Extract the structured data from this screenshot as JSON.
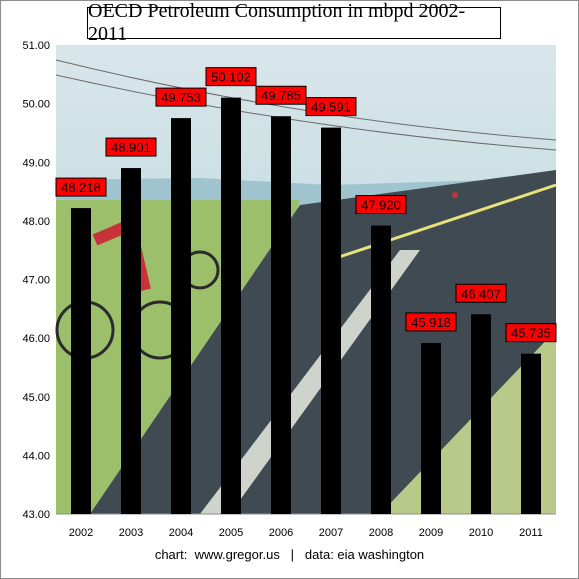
{
  "chart_data": {
    "type": "bar",
    "title": "OECD Petroleum Consumption in mbpd 2002-2011",
    "categories": [
      "2002",
      "2003",
      "2004",
      "2005",
      "2006",
      "2007",
      "2008",
      "2009",
      "2010",
      "2011"
    ],
    "values": [
      48.218,
      48.901,
      49.753,
      50.102,
      49.785,
      49.591,
      47.92,
      45.918,
      46.407,
      45.735
    ],
    "value_labels": [
      "48.218",
      "48.901",
      "49.753",
      "50.102",
      "49.785",
      "49.591",
      "47.920",
      "45.918",
      "46.407",
      "45.735"
    ],
    "ylim": [
      43.0,
      51.0
    ],
    "yticks": [
      "43.00",
      "44.00",
      "45.00",
      "46.00",
      "47.00",
      "48.00",
      "49.00",
      "50.00",
      "51.00"
    ],
    "grid": false,
    "legend": "none",
    "colors": {
      "bar": "#000000",
      "label_bg": "#ff0000",
      "label_border": "#000000"
    }
  },
  "credit": {
    "chart": "chart:  www.gregor.us",
    "separator": "|",
    "data": "data: eia washington"
  }
}
